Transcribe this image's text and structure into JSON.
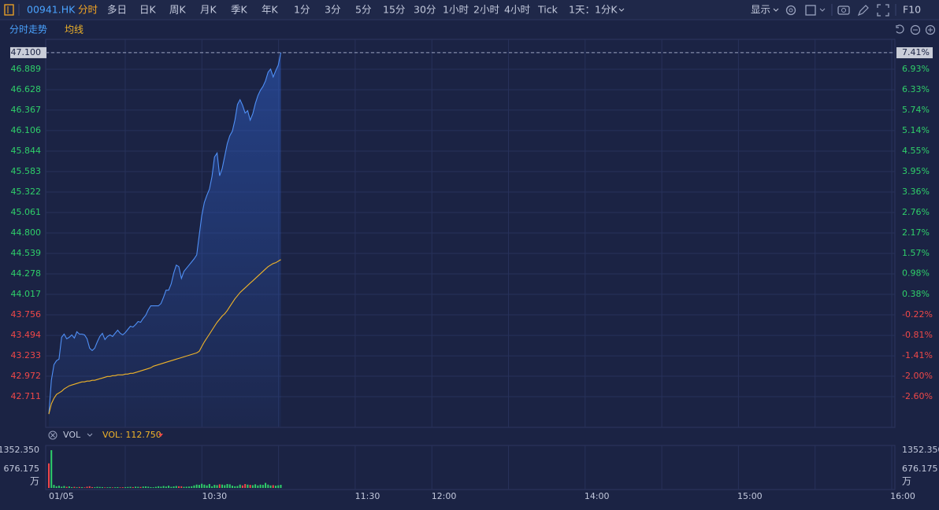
{
  "ui": {
    "symbol": "00941.HK",
    "periods": [
      "分时",
      "多日",
      "日K",
      "周K",
      "月K",
      "季K",
      "年K",
      "1分",
      "3分",
      "5分",
      "15分",
      "30分",
      "1小时",
      "2小时",
      "4小时",
      "Tick",
      "1天：1分K"
    ],
    "active_period": 0,
    "display": "显示",
    "f10": "F10"
  },
  "chart_data": [
    {
      "type": "line",
      "x": [
        0,
        1,
        2,
        3,
        4,
        5,
        6,
        7,
        8,
        9,
        10,
        11,
        12,
        13,
        14,
        15,
        16,
        17,
        18,
        19,
        20,
        21,
        22,
        23,
        24,
        25,
        26,
        27,
        28,
        29,
        30,
        31,
        32,
        33,
        34,
        35,
        36,
        37,
        38,
        39,
        40,
        41,
        42,
        43,
        44,
        45,
        46,
        47,
        48,
        49,
        50,
        51,
        52,
        53,
        54,
        55,
        56,
        57,
        58,
        59,
        60,
        61,
        62,
        63,
        64,
        65,
        66,
        67,
        68,
        69,
        70,
        71,
        72,
        73,
        74,
        75,
        76,
        77,
        78,
        79,
        80,
        81,
        82,
        83,
        84,
        85,
        86,
        87,
        88,
        89,
        90,
        91
      ],
      "series": [
        {
          "name": "分时走势",
          "color": "#4f8ff5",
          "values": [
            42.49,
            42.92,
            43.12,
            43.17,
            43.19,
            43.47,
            43.51,
            43.45,
            43.47,
            43.5,
            43.46,
            43.54,
            43.51,
            43.51,
            43.5,
            43.45,
            43.33,
            43.3,
            43.33,
            43.41,
            43.48,
            43.52,
            43.44,
            43.48,
            43.5,
            43.48,
            43.52,
            43.56,
            43.52,
            43.5,
            43.53,
            43.57,
            43.61,
            43.6,
            43.63,
            43.67,
            43.66,
            43.71,
            43.75,
            43.82,
            43.87,
            43.87,
            43.87,
            43.87,
            43.9,
            43.98,
            44.07,
            44.07,
            44.15,
            44.29,
            44.39,
            44.37,
            44.22,
            44.31,
            44.35,
            44.39,
            44.43,
            44.47,
            44.52,
            44.77,
            45.02,
            45.19,
            45.28,
            45.36,
            45.52,
            45.77,
            45.82,
            45.53,
            45.62,
            45.78,
            45.94,
            46.04,
            46.1,
            46.24,
            46.44,
            46.5,
            46.43,
            46.33,
            46.36,
            46.24,
            46.32,
            46.45,
            46.55,
            46.62,
            46.67,
            46.74,
            46.85,
            46.89,
            46.79,
            46.87,
            46.94,
            47.1
          ]
        },
        {
          "name": "均线",
          "color": "#f0b429",
          "values": [
            42.49,
            42.62,
            42.69,
            42.74,
            42.76,
            42.78,
            42.81,
            42.83,
            42.85,
            42.86,
            42.87,
            42.88,
            42.89,
            42.9,
            42.9,
            42.91,
            42.91,
            42.92,
            42.92,
            42.93,
            42.94,
            42.95,
            42.96,
            42.97,
            42.97,
            42.98,
            42.98,
            42.99,
            42.99,
            42.99,
            43.0,
            43.0,
            43.01,
            43.01,
            43.02,
            43.03,
            43.04,
            43.05,
            43.06,
            43.07,
            43.08,
            43.1,
            43.11,
            43.12,
            43.13,
            43.14,
            43.15,
            43.16,
            43.17,
            43.18,
            43.19,
            43.2,
            43.21,
            43.22,
            43.23,
            43.24,
            43.25,
            43.26,
            43.27,
            43.29,
            43.35,
            43.41,
            43.46,
            43.51,
            43.56,
            43.61,
            43.66,
            43.7,
            43.74,
            43.77,
            43.81,
            43.86,
            43.91,
            43.96,
            44.0,
            44.04,
            44.07,
            44.1,
            44.13,
            44.16,
            44.19,
            44.22,
            44.25,
            44.28,
            44.31,
            44.34,
            44.37,
            44.39,
            44.41,
            44.42,
            44.44,
            44.46
          ]
        }
      ],
      "xlim": [
        0,
        335
      ],
      "xticks": [
        {
          "value": 0,
          "label": "01/05"
        },
        {
          "value": 65,
          "label": "10:30"
        },
        {
          "value": 125,
          "label": "11:30"
        },
        {
          "value": 155,
          "label": "12:00"
        },
        {
          "value": 215,
          "label": "14:00"
        },
        {
          "value": 275,
          "label": "15:00"
        },
        {
          "value": 335,
          "label": "16:00"
        }
      ],
      "ylim": [
        42.33,
        47.27
      ],
      "yticks": [
        {
          "value": 47.1,
          "label": "47.100"
        },
        46.889,
        46.628,
        46.367,
        46.106,
        45.844,
        45.583,
        45.322,
        45.061,
        {
          "value": 44.8,
          "label": "44.800"
        },
        44.539,
        44.278,
        44.017,
        43.756,
        43.494,
        43.233,
        42.972,
        42.711
      ],
      "y2lim": [
        -3.47,
        7.8
      ],
      "y2ticks": [
        {
          "value": 7.41,
          "label": "7.41%"
        },
        {
          "value": 6.93,
          "label": "6.93%"
        },
        {
          "value": 6.33,
          "label": "6.33%"
        },
        {
          "value": 5.74,
          "label": "5.74%"
        },
        {
          "value": 5.14,
          "label": "5.14%"
        },
        {
          "value": 4.55,
          "label": "4.55%"
        },
        {
          "value": 3.95,
          "label": "3.95%"
        },
        {
          "value": 3.36,
          "label": "3.36%"
        },
        {
          "value": 2.76,
          "label": "2.76%"
        },
        {
          "value": 2.17,
          "label": "2.17%"
        },
        {
          "value": 1.57,
          "label": "1.57%"
        },
        {
          "value": 0.98,
          "label": "0.98%"
        },
        {
          "value": 0.38,
          "label": "0.38%"
        },
        {
          "value": -0.22,
          "label": "-0.22%"
        },
        {
          "value": -0.81,
          "label": "-0.81%"
        },
        {
          "value": -1.41,
          "label": "-1.41%"
        },
        {
          "value": -2.0,
          "label": "-2.00%"
        },
        {
          "value": -2.6,
          "label": "-2.60%"
        }
      ],
      "grid": true,
      "up_color": "#2fcf6a",
      "down_color": "#f04848"
    },
    {
      "type": "bar",
      "x": [
        0,
        1,
        2,
        3,
        4,
        5,
        6,
        7,
        8,
        9,
        10,
        11,
        12,
        13,
        14,
        15,
        16,
        17,
        18,
        19,
        20,
        21,
        22,
        23,
        24,
        25,
        26,
        27,
        28,
        29,
        30,
        31,
        32,
        33,
        34,
        35,
        36,
        37,
        38,
        39,
        40,
        41,
        42,
        43,
        44,
        45,
        46,
        47,
        48,
        49,
        50,
        51,
        52,
        53,
        54,
        55,
        56,
        57,
        58,
        59,
        60,
        61,
        62,
        63,
        64,
        65,
        66,
        67,
        68,
        69,
        70,
        71,
        72,
        73,
        74,
        75,
        76,
        77,
        78,
        79,
        80,
        81,
        82,
        83,
        84,
        85,
        86,
        87,
        88,
        89,
        90,
        91
      ],
      "series": [
        {
          "name": "VOL",
          "values": [
            880,
            1352.35,
            110,
            60,
            80,
            45,
            70,
            40,
            55,
            30,
            40,
            25,
            35,
            30,
            20,
            45,
            60,
            30,
            25,
            40,
            35,
            30,
            20,
            25,
            30,
            20,
            25,
            30,
            20,
            25,
            30,
            35,
            40,
            30,
            45,
            40,
            35,
            50,
            55,
            45,
            30,
            25,
            40,
            60,
            45,
            70,
            50,
            80,
            40,
            55,
            70,
            60,
            60,
            40,
            45,
            50,
            60,
            90,
            120,
            110,
            150,
            120,
            90,
            140,
            60,
            110,
            100,
            130,
            120,
            100,
            140,
            130,
            80,
            60,
            70,
            120,
            90,
            140,
            120,
            110,
            100,
            130,
            90,
            120,
            110,
            180,
            120,
            90,
            100,
            80,
            95,
            112.75
          ]
        }
      ],
      "readout": "VOL: 112.750",
      "ylim": [
        0,
        1352.35
      ],
      "yticks": [
        {
          "value": 1352.35,
          "label": "1352.350"
        },
        {
          "value": 676.175,
          "label": "676.175"
        }
      ],
      "unit": "万"
    }
  ]
}
